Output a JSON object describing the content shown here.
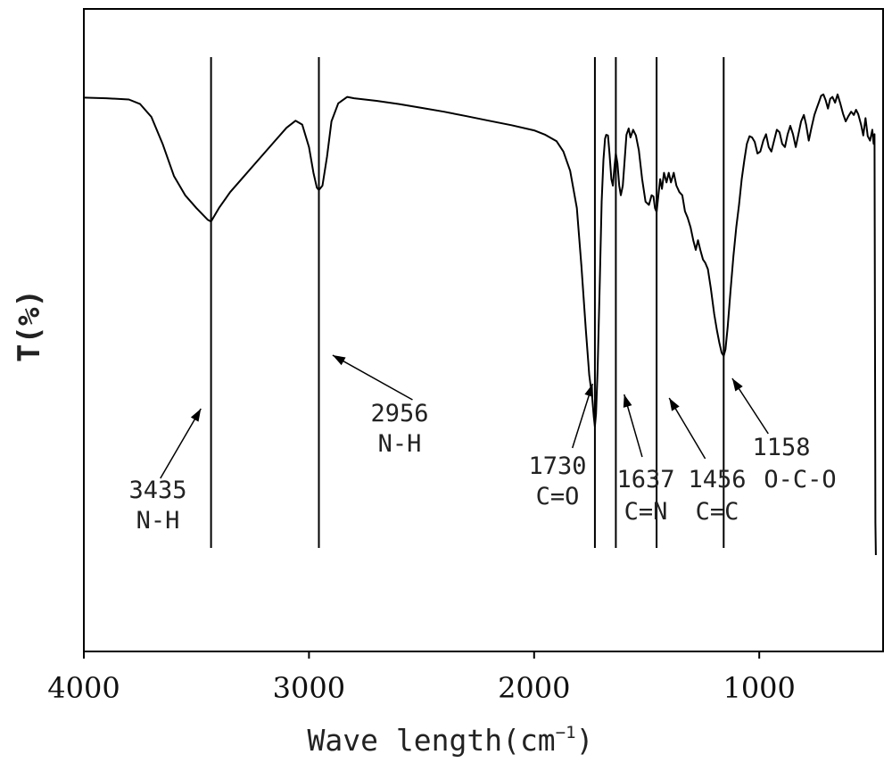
{
  "chart_data": {
    "type": "line",
    "xlabel": "Wave length(cm",
    "xlabel_sup": "−1",
    "xlabel_close": ")",
    "ylabel": "T(%)",
    "xlim": [
      4000,
      450
    ],
    "ylim": [
      0,
      100
    ],
    "x_reversed": true,
    "grid": false,
    "x_ticks": [
      4000,
      3000,
      2000,
      1000
    ],
    "x_tick_labels": [
      "4000",
      "3000",
      "2000",
      "1000"
    ],
    "series": [
      {
        "points": [
          [
            4000,
            86.2
          ],
          [
            3900,
            86.1
          ],
          [
            3800,
            85.9
          ],
          [
            3750,
            85.2
          ],
          [
            3700,
            83.2
          ],
          [
            3650,
            79.0
          ],
          [
            3600,
            74.0
          ],
          [
            3550,
            71.0
          ],
          [
            3500,
            69.0
          ],
          [
            3450,
            67.2
          ],
          [
            3435,
            66.9
          ],
          [
            3400,
            69.0
          ],
          [
            3350,
            71.5
          ],
          [
            3300,
            73.5
          ],
          [
            3250,
            75.5
          ],
          [
            3200,
            77.5
          ],
          [
            3150,
            79.5
          ],
          [
            3100,
            81.5
          ],
          [
            3060,
            82.6
          ],
          [
            3030,
            82.0
          ],
          [
            3000,
            78.5
          ],
          [
            2980,
            74.5
          ],
          [
            2965,
            72.2
          ],
          [
            2956,
            71.8
          ],
          [
            2940,
            72.5
          ],
          [
            2920,
            77.0
          ],
          [
            2900,
            82.5
          ],
          [
            2870,
            85.3
          ],
          [
            2830,
            86.3
          ],
          [
            2800,
            86.1
          ],
          [
            2700,
            85.7
          ],
          [
            2600,
            85.2
          ],
          [
            2500,
            84.6
          ],
          [
            2400,
            84.0
          ],
          [
            2300,
            83.3
          ],
          [
            2200,
            82.6
          ],
          [
            2100,
            81.9
          ],
          [
            2000,
            81.1
          ],
          [
            1950,
            80.4
          ],
          [
            1900,
            79.4
          ],
          [
            1870,
            77.8
          ],
          [
            1840,
            74.8
          ],
          [
            1810,
            69.0
          ],
          [
            1790,
            60.0
          ],
          [
            1770,
            50.0
          ],
          [
            1755,
            43.0
          ],
          [
            1742,
            39.5
          ],
          [
            1735,
            36.5
          ],
          [
            1730,
            35.0
          ],
          [
            1725,
            37.0
          ],
          [
            1718,
            44.0
          ],
          [
            1708,
            58.0
          ],
          [
            1700,
            70.0
          ],
          [
            1692,
            76.5
          ],
          [
            1685,
            79.8
          ],
          [
            1680,
            80.4
          ],
          [
            1672,
            80.3
          ],
          [
            1665,
            77.5
          ],
          [
            1657,
            73.5
          ],
          [
            1650,
            72.5
          ],
          [
            1643,
            75.5
          ],
          [
            1637,
            77.5
          ],
          [
            1630,
            76.0
          ],
          [
            1622,
            72.5
          ],
          [
            1615,
            71.0
          ],
          [
            1606,
            72.5
          ],
          [
            1598,
            76.5
          ],
          [
            1590,
            80.4
          ],
          [
            1580,
            81.4
          ],
          [
            1572,
            80.0
          ],
          [
            1560,
            81.2
          ],
          [
            1548,
            80.3
          ],
          [
            1535,
            78.0
          ],
          [
            1520,
            73.5
          ],
          [
            1505,
            70.0
          ],
          [
            1490,
            69.5
          ],
          [
            1478,
            71.0
          ],
          [
            1470,
            70.8
          ],
          [
            1463,
            69.0
          ],
          [
            1456,
            68.4
          ],
          [
            1448,
            71.0
          ],
          [
            1440,
            73.5
          ],
          [
            1432,
            72.0
          ],
          [
            1423,
            74.5
          ],
          [
            1412,
            73.0
          ],
          [
            1402,
            74.5
          ],
          [
            1392,
            73.0
          ],
          [
            1380,
            74.5
          ],
          [
            1368,
            72.5
          ],
          [
            1355,
            71.5
          ],
          [
            1342,
            71.0
          ],
          [
            1330,
            68.5
          ],
          [
            1318,
            67.5
          ],
          [
            1305,
            66.0
          ],
          [
            1293,
            64.0
          ],
          [
            1282,
            62.5
          ],
          [
            1272,
            64.0
          ],
          [
            1262,
            62.5
          ],
          [
            1250,
            61.0
          ],
          [
            1240,
            60.5
          ],
          [
            1228,
            59.5
          ],
          [
            1215,
            56.5
          ],
          [
            1200,
            52.5
          ],
          [
            1188,
            50.0
          ],
          [
            1177,
            48.0
          ],
          [
            1167,
            46.5
          ],
          [
            1158,
            46.0
          ],
          [
            1150,
            47.0
          ],
          [
            1140,
            50.5
          ],
          [
            1128,
            56.0
          ],
          [
            1115,
            61.5
          ],
          [
            1102,
            66.0
          ],
          [
            1090,
            69.5
          ],
          [
            1078,
            73.5
          ],
          [
            1066,
            76.5
          ],
          [
            1055,
            79.0
          ],
          [
            1043,
            80.2
          ],
          [
            1032,
            80.0
          ],
          [
            1020,
            79.3
          ],
          [
            1008,
            77.5
          ],
          [
            995,
            77.8
          ],
          [
            982,
            79.5
          ],
          [
            970,
            80.5
          ],
          [
            958,
            78.5
          ],
          [
            946,
            77.8
          ],
          [
            934,
            79.5
          ],
          [
            922,
            81.2
          ],
          [
            910,
            80.8
          ],
          [
            898,
            79.0
          ],
          [
            886,
            78.5
          ],
          [
            874,
            80.5
          ],
          [
            862,
            81.8
          ],
          [
            850,
            80.5
          ],
          [
            838,
            78.5
          ],
          [
            826,
            80.5
          ],
          [
            814,
            82.5
          ],
          [
            802,
            83.5
          ],
          [
            792,
            82.0
          ],
          [
            780,
            79.5
          ],
          [
            768,
            81.5
          ],
          [
            755,
            83.5
          ],
          [
            745,
            84.5
          ],
          [
            735,
            85.5
          ],
          [
            725,
            86.5
          ],
          [
            715,
            86.7
          ],
          [
            705,
            85.8
          ],
          [
            695,
            84.5
          ],
          [
            685,
            86.0
          ],
          [
            675,
            86.3
          ],
          [
            663,
            85.4
          ],
          [
            652,
            86.7
          ],
          [
            640,
            85.3
          ],
          [
            628,
            83.7
          ],
          [
            616,
            82.5
          ],
          [
            604,
            83.3
          ],
          [
            592,
            84.0
          ],
          [
            580,
            83.5
          ],
          [
            570,
            84.3
          ],
          [
            560,
            83.6
          ],
          [
            548,
            82.0
          ],
          [
            538,
            80.3
          ],
          [
            528,
            83.0
          ],
          [
            518,
            80.2
          ],
          [
            508,
            79.5
          ],
          [
            498,
            81.2
          ],
          [
            492,
            79.0
          ],
          [
            488,
            80.5
          ],
          [
            484,
            20.0
          ],
          [
            482,
            15.0
          ]
        ]
      }
    ],
    "marker_lines": [
      3435,
      2956,
      1730,
      1637,
      1456,
      1158
    ],
    "annotations": [
      {
        "value": "3435",
        "group": "N-H"
      },
      {
        "value": "2956",
        "group": "N-H"
      },
      {
        "value": "1730",
        "group": "C=O"
      },
      {
        "value": "1637",
        "group": "C=N"
      },
      {
        "value": "1456",
        "group": "C=C"
      },
      {
        "value": "1158",
        "group": "O-C-O"
      }
    ]
  }
}
